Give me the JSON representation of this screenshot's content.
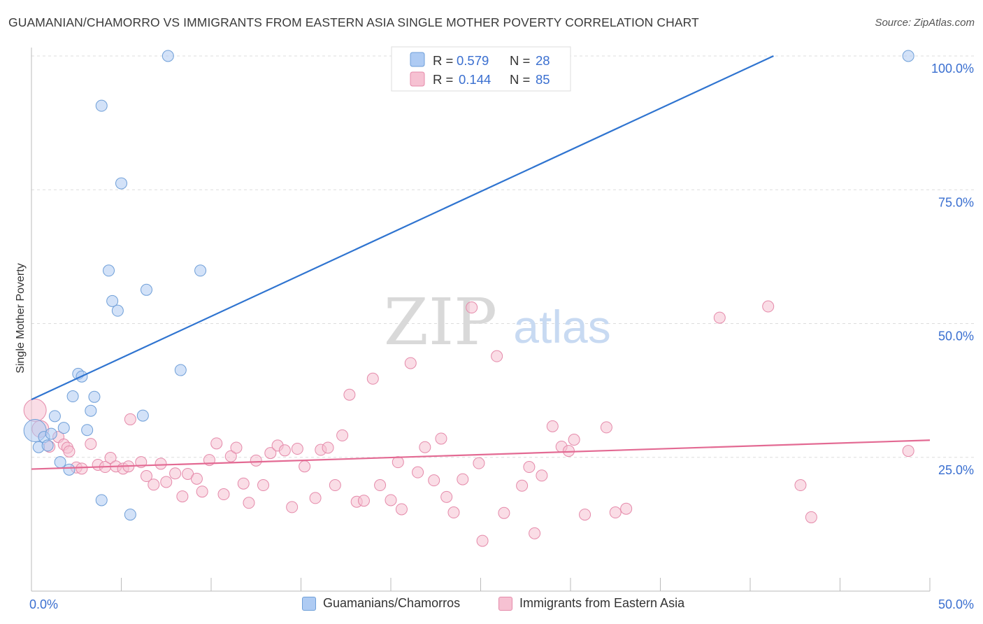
{
  "header": {
    "title": "GUAMANIAN/CHAMORRO VS IMMIGRANTS FROM EASTERN ASIA SINGLE MOTHER POVERTY CORRELATION CHART",
    "source": "Source: ZipAtlas.com"
  },
  "watermark": {
    "zip": "ZIP",
    "atlas": "atlas"
  },
  "legend_top": {
    "r_label": "R =",
    "n_label": "N =",
    "series": [
      {
        "r": "0.579",
        "n": "28"
      },
      {
        "r": "0.144",
        "n": "85"
      }
    ]
  },
  "colors": {
    "blue_fill": "#aecbf3",
    "blue_stroke": "#6f9fd8",
    "blue_line": "#2f74d0",
    "pink_fill": "#f6c1d2",
    "pink_stroke": "#e58aaa",
    "pink_line": "#e36a93",
    "value_text": "#3a6fd0",
    "grid": "#dddddd"
  },
  "chart_data": {
    "type": "scatter",
    "title": "GUAMANIAN/CHAMORRO VS IMMIGRANTS FROM EASTERN ASIA SINGLE MOTHER POVERTY CORRELATION CHART",
    "xlabel": "",
    "ylabel": "Single Mother Poverty",
    "xlim": [
      0,
      50
    ],
    "ylim": [
      0,
      102
    ],
    "x_tick_labels": [
      "0.0%",
      "50.0%"
    ],
    "y_ticks": [
      25,
      50,
      75,
      100
    ],
    "y_tick_labels": [
      "25.0%",
      "50.0%",
      "75.0%",
      "100.0%"
    ],
    "grid": true,
    "legend_position": "top-center",
    "series": [
      {
        "name": "Guamanians/Chamorros",
        "r": 0.579,
        "n": 28,
        "trend": {
          "x": [
            0,
            41.3
          ],
          "y": [
            35.8,
            100
          ]
        },
        "points": [
          [
            0.2,
            30.0,
            3
          ],
          [
            0.4,
            26.9,
            1
          ],
          [
            0.7,
            28.8,
            1
          ],
          [
            0.9,
            27.2,
            1
          ],
          [
            1.1,
            29.4,
            1
          ],
          [
            1.3,
            32.7,
            1
          ],
          [
            1.6,
            24.1,
            1
          ],
          [
            1.8,
            30.5,
            1
          ],
          [
            2.1,
            22.7,
            1
          ],
          [
            2.3,
            36.4,
            1
          ],
          [
            2.6,
            40.6,
            1
          ],
          [
            2.8,
            40.1,
            1
          ],
          [
            3.1,
            30.1,
            1
          ],
          [
            3.3,
            33.7,
            1
          ],
          [
            3.5,
            36.3,
            1
          ],
          [
            3.9,
            17.0,
            1
          ],
          [
            3.9,
            90.7,
            1
          ],
          [
            4.3,
            59.9,
            1
          ],
          [
            4.5,
            54.2,
            1
          ],
          [
            4.8,
            52.4,
            1
          ],
          [
            5.0,
            76.2,
            1
          ],
          [
            5.5,
            14.3,
            1
          ],
          [
            6.2,
            32.8,
            1
          ],
          [
            6.4,
            56.3,
            1
          ],
          [
            7.6,
            100.0,
            1
          ],
          [
            8.3,
            41.3,
            1
          ],
          [
            9.4,
            59.9,
            1
          ],
          [
            48.8,
            100.0,
            1
          ]
        ]
      },
      {
        "name": "Immigrants from Eastern Asia",
        "r": 0.144,
        "n": 85,
        "trend": {
          "x": [
            0,
            50
          ],
          "y": [
            22.8,
            28.2
          ]
        },
        "points": [
          [
            0.2,
            33.8,
            3
          ],
          [
            0.5,
            30.3,
            2
          ],
          [
            1.0,
            27.0,
            1
          ],
          [
            1.5,
            28.8,
            1
          ],
          [
            1.8,
            27.4,
            1
          ],
          [
            2.0,
            26.8,
            1
          ],
          [
            2.1,
            26.1,
            1
          ],
          [
            2.5,
            23.1,
            1
          ],
          [
            2.8,
            22.9,
            1
          ],
          [
            3.3,
            27.5,
            1
          ],
          [
            3.7,
            23.6,
            1
          ],
          [
            4.1,
            23.2,
            1
          ],
          [
            4.4,
            24.9,
            1
          ],
          [
            4.7,
            23.3,
            1
          ],
          [
            5.1,
            22.9,
            1
          ],
          [
            5.4,
            23.3,
            1
          ],
          [
            5.5,
            32.1,
            1
          ],
          [
            6.1,
            24.1,
            1
          ],
          [
            6.4,
            21.5,
            1
          ],
          [
            6.8,
            19.9,
            1
          ],
          [
            7.2,
            23.8,
            1
          ],
          [
            7.5,
            20.4,
            1
          ],
          [
            8.0,
            22.0,
            1
          ],
          [
            8.4,
            17.7,
            1
          ],
          [
            8.7,
            21.9,
            1
          ],
          [
            9.2,
            21.0,
            1
          ],
          [
            9.5,
            18.6,
            1
          ],
          [
            9.9,
            24.5,
            1
          ],
          [
            10.3,
            27.6,
            1
          ],
          [
            10.7,
            18.1,
            1
          ],
          [
            11.1,
            25.2,
            1
          ],
          [
            11.4,
            26.8,
            1
          ],
          [
            11.8,
            20.1,
            1
          ],
          [
            12.1,
            16.5,
            1
          ],
          [
            12.5,
            24.4,
            1
          ],
          [
            12.9,
            19.8,
            1
          ],
          [
            13.3,
            25.8,
            1
          ],
          [
            13.7,
            27.2,
            1
          ],
          [
            14.1,
            26.3,
            1
          ],
          [
            14.5,
            15.7,
            1
          ],
          [
            14.8,
            26.6,
            1
          ],
          [
            15.2,
            23.3,
            1
          ],
          [
            15.8,
            17.4,
            1
          ],
          [
            16.1,
            26.4,
            1
          ],
          [
            16.5,
            26.8,
            1
          ],
          [
            16.9,
            19.8,
            1
          ],
          [
            17.3,
            29.1,
            1
          ],
          [
            17.7,
            36.7,
            1
          ],
          [
            18.1,
            16.7,
            1
          ],
          [
            18.5,
            16.9,
            1
          ],
          [
            19.0,
            39.7,
            1
          ],
          [
            19.4,
            19.8,
            1
          ],
          [
            20.0,
            17.0,
            1
          ],
          [
            20.4,
            24.1,
            1
          ],
          [
            20.6,
            15.3,
            1
          ],
          [
            21.1,
            42.6,
            1
          ],
          [
            21.5,
            22.2,
            1
          ],
          [
            21.9,
            26.9,
            1
          ],
          [
            22.4,
            20.7,
            1
          ],
          [
            22.8,
            28.5,
            1
          ],
          [
            23.1,
            17.6,
            1
          ],
          [
            23.5,
            14.7,
            1
          ],
          [
            24.0,
            20.9,
            1
          ],
          [
            24.5,
            53.0,
            1
          ],
          [
            24.9,
            23.9,
            1
          ],
          [
            25.1,
            9.4,
            1
          ],
          [
            25.9,
            43.9,
            1
          ],
          [
            26.3,
            14.6,
            1
          ],
          [
            27.3,
            19.7,
            1
          ],
          [
            27.7,
            23.2,
            1
          ],
          [
            28.0,
            10.8,
            1
          ],
          [
            28.4,
            21.6,
            1
          ],
          [
            29.0,
            30.8,
            1
          ],
          [
            29.5,
            27.0,
            1
          ],
          [
            29.9,
            26.2,
            1
          ],
          [
            30.2,
            28.3,
            1
          ],
          [
            30.8,
            14.3,
            1
          ],
          [
            32.0,
            30.6,
            1
          ],
          [
            32.5,
            14.7,
            1
          ],
          [
            33.1,
            15.4,
            1
          ],
          [
            38.3,
            51.1,
            1
          ],
          [
            41.0,
            53.2,
            1
          ],
          [
            42.8,
            19.8,
            1
          ],
          [
            43.4,
            13.8,
            1
          ],
          [
            48.8,
            26.2,
            1
          ]
        ]
      }
    ]
  },
  "legend_bottom": {
    "items": [
      {
        "label": "Guamanians/Chamorros"
      },
      {
        "label": "Immigrants from Eastern Asia"
      }
    ]
  }
}
